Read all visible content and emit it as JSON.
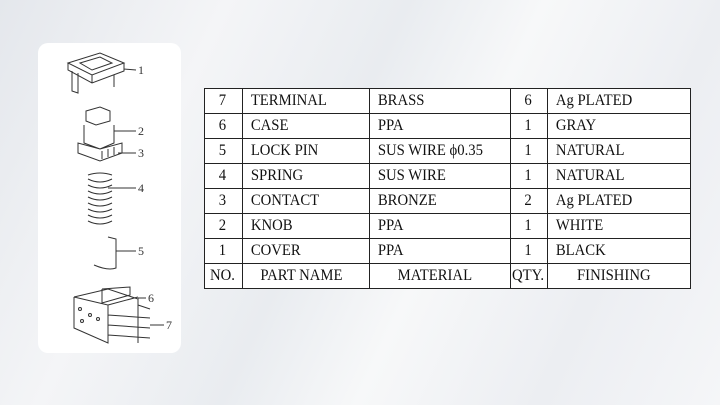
{
  "diagram": {
    "callouts": [
      "1",
      "2",
      "3",
      "4",
      "5",
      "6",
      "7"
    ]
  },
  "table": {
    "rows": [
      [
        "7",
        "TERMINAL",
        "BRASS",
        "6",
        "Ag PLATED"
      ],
      [
        "6",
        "CASE",
        "PPA",
        "1",
        "GRAY"
      ],
      [
        "5",
        "LOCK PIN",
        "SUS WIRE ϕ0.35",
        "1",
        "NATURAL"
      ],
      [
        "4",
        "SPRING",
        "SUS WIRE",
        "1",
        "NATURAL"
      ],
      [
        "3",
        "CONTACT",
        "BRONZE",
        "2",
        "Ag PLATED"
      ],
      [
        "2",
        "KNOB",
        "PPA",
        "1",
        "WHITE"
      ],
      [
        "1",
        "COVER",
        "PPA",
        "1",
        "BLACK"
      ]
    ],
    "header": [
      "NO.",
      "PART NAME",
      "MATERIAL",
      "QTY.",
      "FINISHING"
    ]
  }
}
